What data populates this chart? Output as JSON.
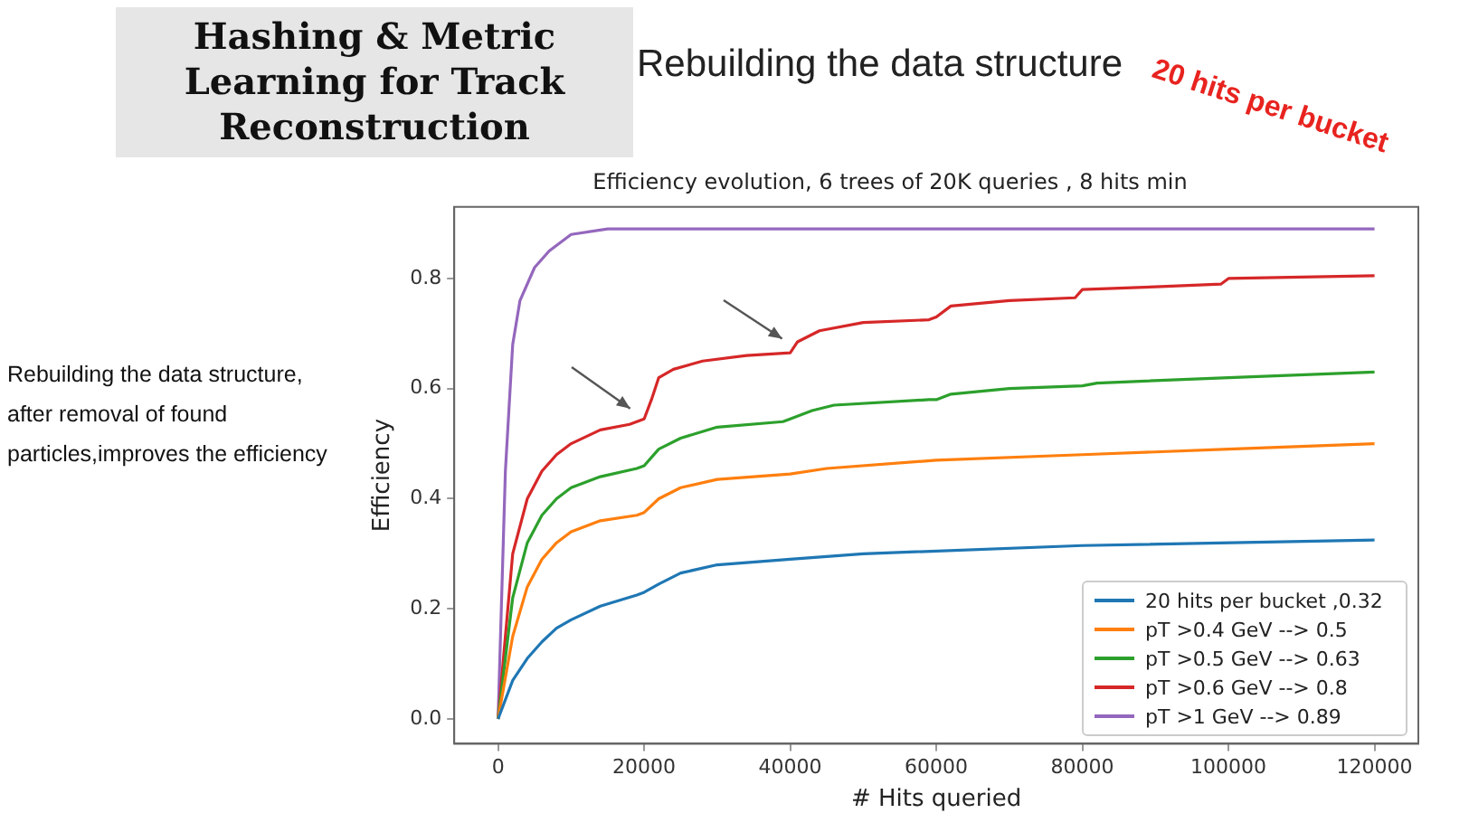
{
  "chart_data": {
    "type": "line",
    "title": "Efficiency evolution, 6 trees of 20K queries , 8 hits min",
    "xlabel": "# Hits queried",
    "ylabel": "Efficiency",
    "annotations": [
      "Rebuilding the data structure",
      "Hashing & Metric Learning for Track Reconstruction",
      "20 hits per bucket",
      "Rebuilding the data structure, after removal of found particles,improves the efficiency"
    ],
    "xlim": [
      -6000,
      126000
    ],
    "xticks": [
      0,
      20000,
      40000,
      60000,
      80000,
      100000,
      120000
    ],
    "ylim": [
      -0.045,
      0.93
    ],
    "yticks": [
      {
        "value": 0,
        "label": "0.0"
      },
      0.2,
      0.4,
      0.6,
      0.8
    ],
    "grid": false,
    "legend": "bottom right",
    "marker": "none",
    "line_style": "solid",
    "series": [
      {
        "name": "20 hits per bucket ,0.32",
        "color": "#1f77b4",
        "x": [
          0,
          2000,
          4000,
          6000,
          8000,
          10000,
          14000,
          19000,
          20000,
          22000,
          25000,
          30000,
          40000,
          50000,
          80000,
          120000
        ],
        "values": [
          0,
          0.07,
          0.11,
          0.14,
          0.165,
          0.18,
          0.205,
          0.225,
          0.23,
          0.245,
          0.265,
          0.28,
          0.29,
          0.3,
          0.315,
          0.325
        ]
      },
      {
        "name": "pT >0.4 GeV --> 0.5",
        "color": "#ff7f0e",
        "x": [
          0,
          2000,
          4000,
          6000,
          8000,
          10000,
          14000,
          19000,
          20000,
          22000,
          25000,
          30000,
          40000,
          45000,
          60000,
          80000,
          100000,
          120000
        ],
        "values": [
          0,
          0.15,
          0.24,
          0.29,
          0.32,
          0.34,
          0.36,
          0.37,
          0.375,
          0.4,
          0.42,
          0.435,
          0.445,
          0.455,
          0.47,
          0.48,
          0.49,
          0.5
        ]
      },
      {
        "name": "pT >0.5 GeV --> 0.63",
        "color": "#2ca02c",
        "x": [
          0,
          2000,
          4000,
          6000,
          8000,
          10000,
          14000,
          19000,
          20000,
          22000,
          25000,
          30000,
          39000,
          40000,
          43000,
          46000,
          59000,
          60000,
          62000,
          70000,
          80000,
          82000,
          100000,
          120000
        ],
        "values": [
          0,
          0.22,
          0.32,
          0.37,
          0.4,
          0.42,
          0.44,
          0.455,
          0.46,
          0.49,
          0.51,
          0.53,
          0.54,
          0.545,
          0.56,
          0.57,
          0.58,
          0.58,
          0.59,
          0.6,
          0.605,
          0.61,
          0.62,
          0.63
        ]
      },
      {
        "name": "pT >0.6 GeV --> 0.8",
        "color": "#d62728",
        "x": [
          0,
          2000,
          4000,
          6000,
          8000,
          10000,
          14000,
          18000,
          20000,
          21000,
          22000,
          24000,
          28000,
          34000,
          40000,
          41000,
          44000,
          50000,
          59000,
          60000,
          62000,
          70000,
          79000,
          80000,
          90000,
          99000,
          100000,
          120000
        ],
        "values": [
          0,
          0.3,
          0.4,
          0.45,
          0.48,
          0.5,
          0.525,
          0.535,
          0.545,
          0.58,
          0.62,
          0.635,
          0.65,
          0.66,
          0.665,
          0.685,
          0.705,
          0.72,
          0.725,
          0.73,
          0.75,
          0.76,
          0.765,
          0.78,
          0.785,
          0.79,
          0.8,
          0.805
        ]
      },
      {
        "name": "pT >1 GeV --> 0.89",
        "color": "#9467bd",
        "x": [
          0,
          1000,
          2000,
          3000,
          5000,
          7000,
          10000,
          15000,
          120000
        ],
        "values": [
          0,
          0.45,
          0.68,
          0.76,
          0.82,
          0.85,
          0.88,
          0.89,
          0.89
        ]
      }
    ]
  }
}
